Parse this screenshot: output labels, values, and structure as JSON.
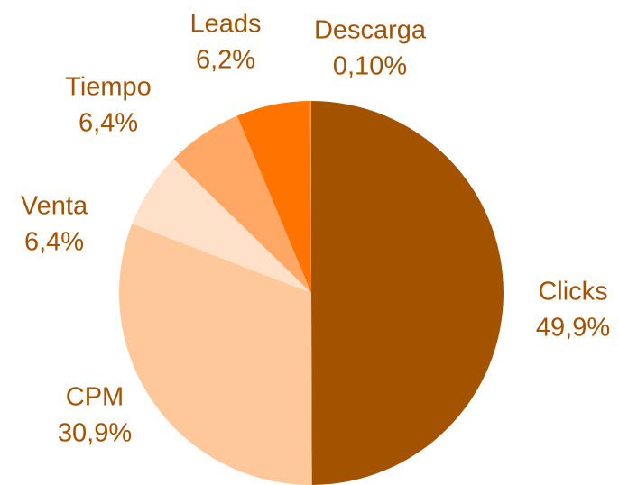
{
  "chart_data": {
    "type": "pie",
    "categories": [
      "Clicks",
      "CPM",
      "Venta",
      "Tiempo",
      "Leads",
      "Descarga"
    ],
    "values": [
      49.9,
      30.9,
      6.4,
      6.4,
      6.2,
      0.1
    ],
    "value_labels": [
      "49,9%",
      "30,9%",
      "6,4%",
      "6,4%",
      "6,2%",
      "0,10%"
    ],
    "colors": [
      "#A35200",
      "#FFC89A",
      "#FFE1CA",
      "#FFA866",
      "#FF7300",
      "#FF9A40"
    ]
  }
}
